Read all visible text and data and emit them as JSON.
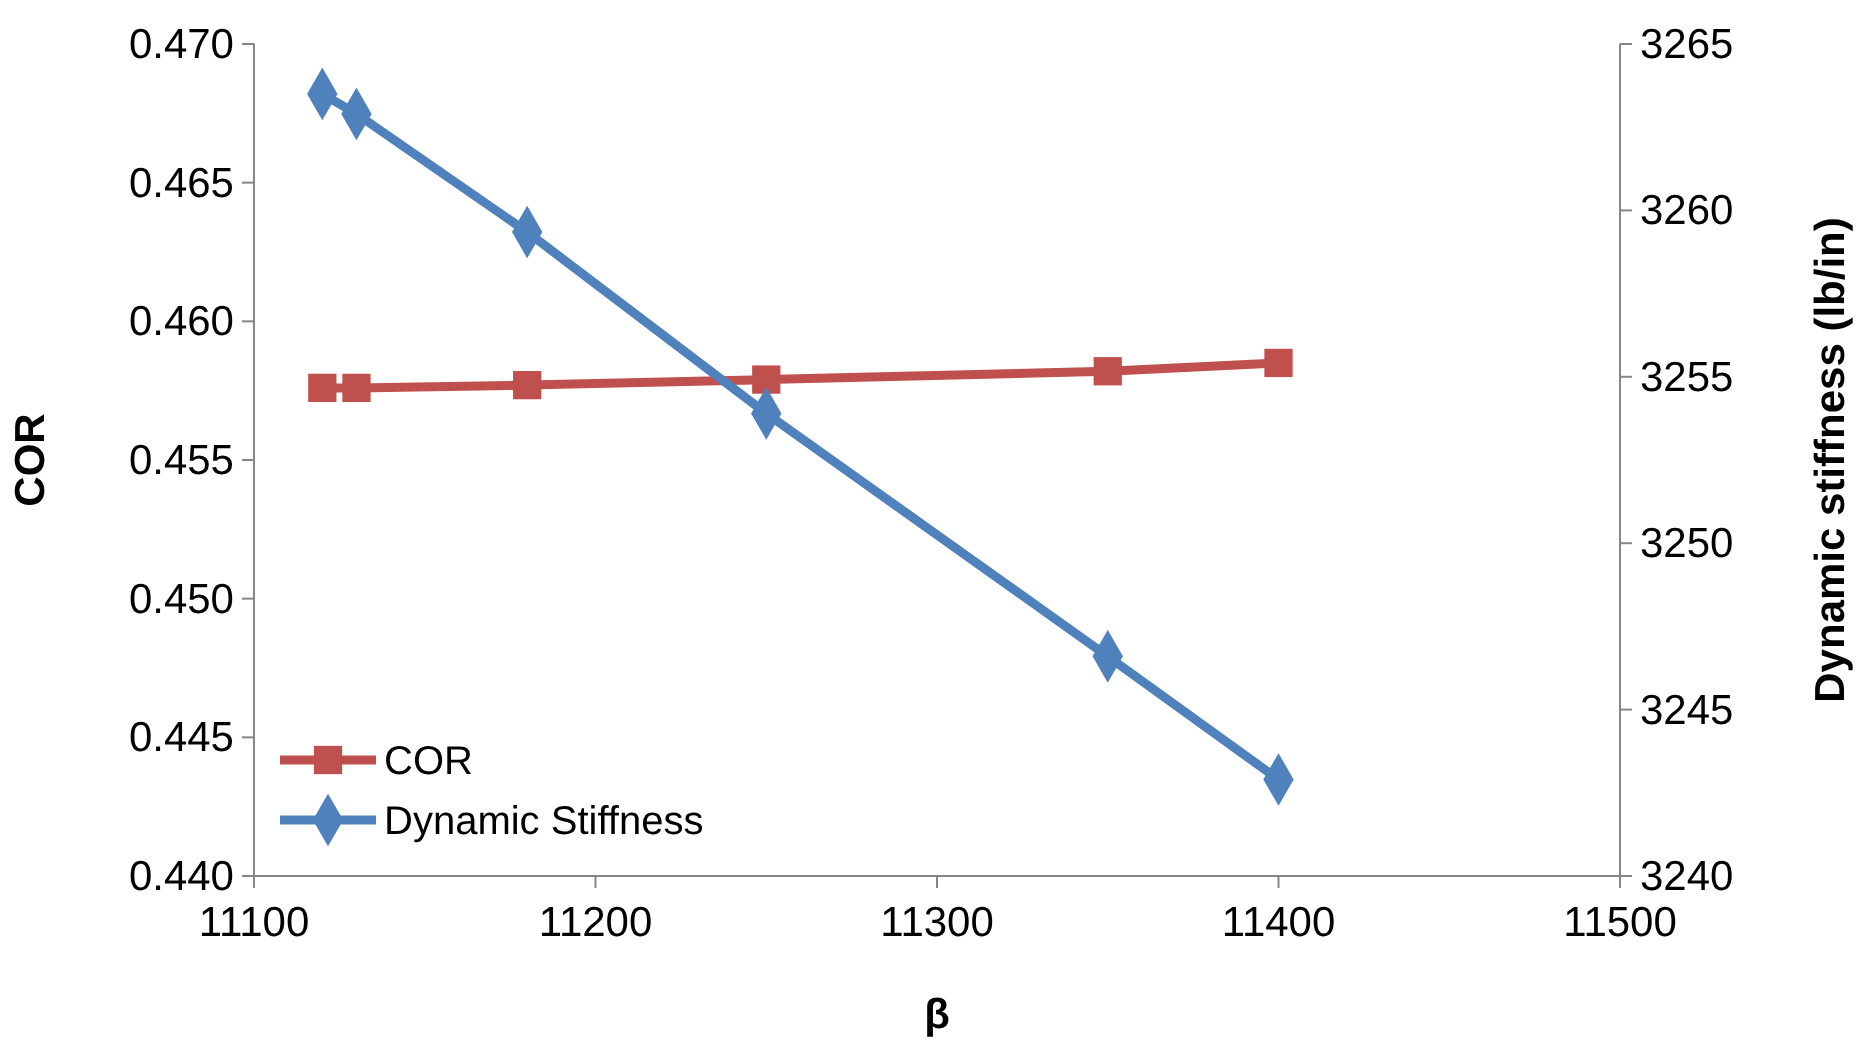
{
  "chart_data": {
    "type": "line",
    "xlabel": "β",
    "ylabel": "COR",
    "y2label": "Dynamic stiffness (lb/in)",
    "x": [
      11120,
      11130,
      11180,
      11250,
      11350,
      11400
    ],
    "series": [
      {
        "name": "COR",
        "color": "#c0504d",
        "marker": "square",
        "values": [
          0.4576,
          0.4576,
          0.4577,
          0.4579,
          0.4582,
          0.4585
        ]
      },
      {
        "name": "Dynamic Stiffness",
        "color": "#4f81bd",
        "marker": "diamond",
        "axis": "y2",
        "values": [
          3263.5,
          3262.9,
          3259.35,
          3253.9,
          3246.6,
          3242.9
        ]
      }
    ],
    "xlim": [
      11100,
      11500
    ],
    "xticks": [
      11100,
      11200,
      11300,
      11400,
      11500
    ],
    "ylim": [
      0.44,
      0.47
    ],
    "yticks": [
      {
        "value": 0.44,
        "label": "0.440"
      },
      {
        "value": 0.445,
        "label": "0.445"
      },
      {
        "value": 0.45,
        "label": "0.450"
      },
      {
        "value": 0.455,
        "label": "0.455"
      },
      {
        "value": 0.46,
        "label": "0.460"
      },
      {
        "value": 0.465,
        "label": "0.465"
      },
      {
        "value": 0.47,
        "label": "0.470"
      }
    ],
    "y2lim": [
      3240,
      3265
    ],
    "y2ticks": [
      3240,
      3245,
      3250,
      3255,
      3260,
      3265
    ],
    "legend": "bottom left",
    "grid": false
  }
}
